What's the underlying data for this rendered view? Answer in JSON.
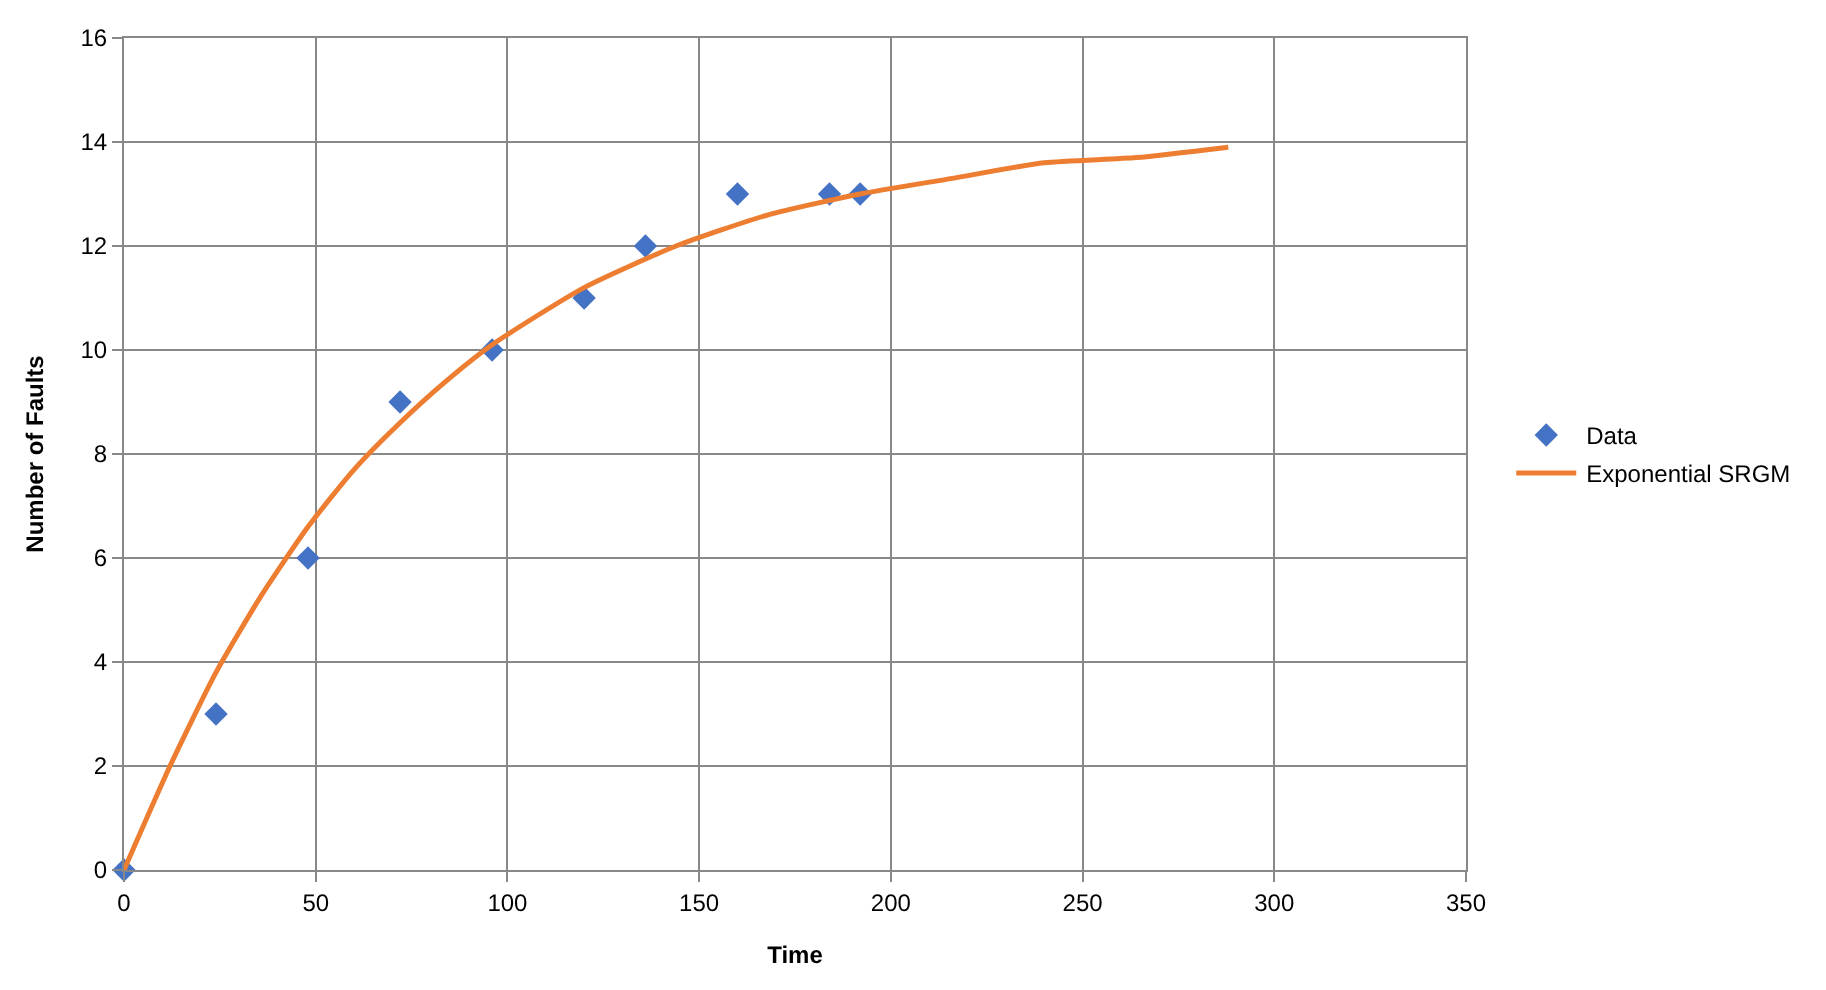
{
  "chart_data": {
    "type": "scatter",
    "xlabel": "Time",
    "ylabel": "Number of Faults",
    "xlim": [
      0,
      350
    ],
    "xticks": [
      0,
      50,
      100,
      150,
      200,
      250,
      300,
      350
    ],
    "ylim": [
      0,
      16
    ],
    "yticks": [
      0,
      2,
      4,
      6,
      8,
      10,
      12,
      14,
      16
    ],
    "grid": true,
    "legend": "right",
    "series": [
      {
        "name": "Data",
        "marker": "diamond",
        "color": "#4472c4",
        "x": [
          0,
          24,
          48,
          72,
          96,
          120,
          136,
          160,
          184,
          192
        ],
        "values": [
          0,
          3,
          6,
          9,
          10,
          11,
          12,
          13,
          13,
          13
        ]
      },
      {
        "name": "Exponential SRGM",
        "type": "line",
        "color": "#ed7d31",
        "x": [
          0,
          12,
          24,
          36,
          48,
          60,
          72,
          84,
          96,
          120,
          144,
          168,
          192,
          216,
          240,
          264,
          288
        ],
        "values": [
          0,
          2.0,
          3.8,
          5.3,
          6.6,
          7.7,
          8.6,
          9.4,
          10.1,
          11.2,
          12.0,
          12.6,
          13.0,
          13.3,
          13.6,
          13.7,
          13.9
        ]
      }
    ]
  }
}
